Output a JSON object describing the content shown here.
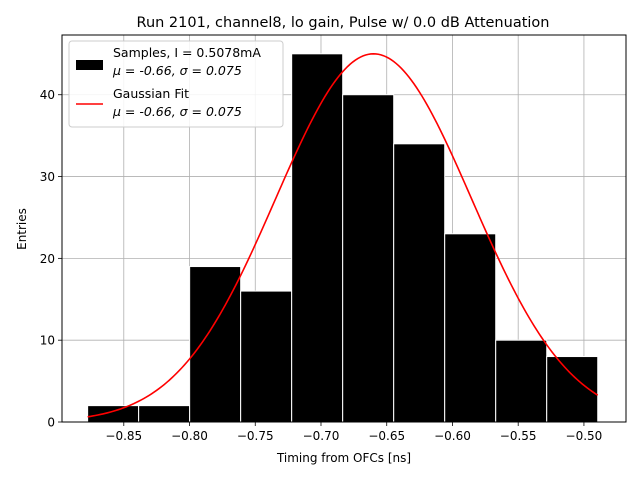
{
  "chart_data": {
    "type": "bar",
    "title": "Run 2101, channel8, lo gain, Pulse w/ 0.0 dB Attenuation",
    "xlabel": "Timing from OFCs [ns]",
    "ylabel": "Entries",
    "xlim": [
      -0.897,
      -0.468
    ],
    "ylim": [
      0,
      47.3
    ],
    "grid": true,
    "xticks": [
      -0.85,
      -0.8,
      -0.75,
      -0.7,
      -0.65,
      -0.6,
      -0.55,
      -0.5
    ],
    "xtick_labels": [
      "−0.85",
      "−0.80",
      "−0.75",
      "−0.70",
      "−0.65",
      "−0.60",
      "−0.55",
      "−0.50"
    ],
    "yticks": [
      0,
      10,
      20,
      30,
      40
    ],
    "ytick_labels": [
      "0",
      "10",
      "20",
      "30",
      "40"
    ],
    "histogram": {
      "name": "Samples, I = 0.5078mA",
      "stats": "μ = -0.66, σ = 0.075",
      "color": "#000000",
      "edgecolor": "#ffffff",
      "bin_edges": [
        -0.8775,
        -0.8387,
        -0.7999,
        -0.7611,
        -0.7223,
        -0.6835,
        -0.6447,
        -0.6059,
        -0.5671,
        -0.5283,
        -0.4895
      ],
      "values": [
        2,
        2,
        19,
        16,
        45,
        40,
        34,
        23,
        10,
        8
      ]
    },
    "fit": {
      "name": "Gaussian Fit",
      "stats": "μ = -0.66, σ = 0.075",
      "color": "#ff0000",
      "amplitude": 45,
      "mu": -0.66,
      "sigma": 0.0745,
      "x_range": [
        -0.8775,
        -0.4895
      ]
    },
    "legend": {
      "placement": "upper-left",
      "entries": [
        {
          "line1": "Samples, I = 0.5078mA",
          "line2": "μ = -0.66, σ = 0.075"
        },
        {
          "line1": "Gaussian Fit",
          "line2": "μ = -0.66, σ = 0.075"
        }
      ]
    }
  }
}
